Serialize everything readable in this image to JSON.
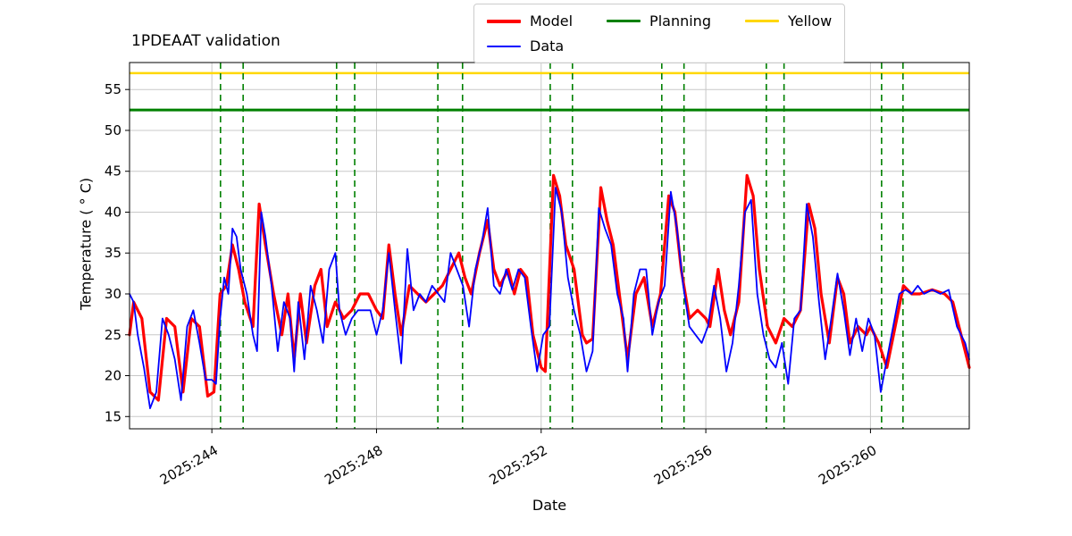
{
  "figure": {
    "title": "1PDEAAT validation",
    "xlabel": "Date",
    "ylabel": "Temperature ( ° C)"
  },
  "legend": {
    "items": [
      {
        "label": "Model",
        "color": "#ff0000",
        "lw": 4
      },
      {
        "label": "Planning",
        "color": "#008000",
        "lw": 3
      },
      {
        "label": "Yellow",
        "color": "#ffd700",
        "lw": 3
      },
      {
        "label": "Data",
        "color": "#0000ff",
        "lw": 2
      }
    ]
  },
  "chart_data": {
    "type": "line",
    "title": "1PDEAAT validation",
    "xlabel": "Date",
    "ylabel": "Temperature ( ° C)",
    "xlim": [
      242.0,
      262.4
    ],
    "ylim": [
      13.5,
      58.3
    ],
    "grid": true,
    "grid_color": "#c8c8c8",
    "x_ticks": [
      244,
      248,
      252,
      256,
      260
    ],
    "x_tick_labels": [
      "2025:244",
      "2025:248",
      "2025:252",
      "2025:256",
      "2025:260"
    ],
    "y_ticks": [
      15,
      20,
      25,
      30,
      35,
      40,
      45,
      50,
      55
    ],
    "hlines": [
      {
        "name": "Yellow",
        "y": 57.0,
        "color": "#ffd700",
        "lw": 2.5
      },
      {
        "name": "Planning",
        "y": 52.5,
        "color": "#008000",
        "lw": 3
      }
    ],
    "vlines": {
      "color": "#008000",
      "style": "dashed",
      "x": [
        244.21,
        244.76,
        247.03,
        247.47,
        249.49,
        250.09,
        252.22,
        252.76,
        254.93,
        255.47,
        257.47,
        257.9,
        260.27,
        260.79
      ]
    },
    "series": [
      {
        "name": "Model",
        "color": "#ff0000",
        "lw": 3.2,
        "x": [
          242.0,
          242.1,
          242.3,
          242.5,
          242.7,
          242.9,
          243.1,
          243.3,
          243.5,
          243.7,
          243.9,
          244.05,
          244.2,
          244.35,
          244.5,
          244.65,
          244.8,
          245.0,
          245.15,
          245.3,
          245.5,
          245.7,
          245.85,
          246.0,
          246.15,
          246.3,
          246.5,
          246.65,
          246.8,
          247.0,
          247.2,
          247.4,
          247.6,
          247.8,
          248.0,
          248.15,
          248.3,
          248.45,
          248.6,
          248.8,
          249.0,
          249.2,
          249.4,
          249.6,
          249.8,
          250.0,
          250.15,
          250.3,
          250.5,
          250.7,
          250.85,
          251.0,
          251.2,
          251.35,
          251.5,
          251.65,
          251.8,
          252.0,
          252.1,
          252.3,
          252.45,
          252.6,
          252.8,
          253.0,
          253.1,
          253.25,
          253.45,
          253.6,
          253.75,
          253.9,
          254.0,
          254.1,
          254.3,
          254.5,
          254.7,
          254.9,
          255.1,
          255.25,
          255.4,
          255.6,
          255.8,
          256.0,
          256.1,
          256.3,
          256.45,
          256.6,
          256.8,
          257.0,
          257.15,
          257.3,
          257.5,
          257.7,
          257.9,
          258.1,
          258.3,
          258.5,
          258.65,
          258.8,
          259.0,
          259.2,
          259.35,
          259.5,
          259.7,
          259.9,
          260.0,
          260.2,
          260.4,
          260.6,
          260.8,
          261.0,
          261.2,
          261.5,
          261.8,
          262.0,
          262.2,
          262.4
        ],
        "y": [
          25,
          29,
          27,
          18,
          17,
          27,
          26,
          18,
          27,
          26,
          17.5,
          18,
          30,
          31,
          36,
          33,
          29,
          26,
          41,
          36,
          30,
          25,
          30,
          22,
          30,
          24,
          31,
          33,
          26,
          29,
          27,
          28,
          30,
          30,
          28,
          27,
          36,
          30,
          25,
          31,
          30,
          29,
          30,
          31,
          33,
          35,
          32,
          30,
          35,
          39,
          33,
          31,
          33,
          30,
          33,
          32,
          25,
          21,
          20.5,
          44.5,
          42,
          36,
          33,
          25,
          24,
          24.5,
          43,
          39,
          36,
          30,
          26,
          22,
          30,
          32,
          26,
          30,
          42,
          40,
          33,
          27,
          28,
          27,
          26,
          33,
          28,
          25,
          29,
          44.5,
          42,
          33,
          26,
          24,
          27,
          26,
          28,
          41,
          38,
          30,
          24,
          32,
          30,
          24,
          26,
          25,
          26,
          24,
          21,
          26,
          31,
          30,
          30,
          30.5,
          30,
          29,
          25,
          21
        ]
      },
      {
        "name": "Data",
        "color": "#0000ff",
        "lw": 1.8,
        "x": [
          242.0,
          242.1,
          242.2,
          242.35,
          242.5,
          242.65,
          242.8,
          242.95,
          243.1,
          243.25,
          243.4,
          243.55,
          243.7,
          243.85,
          244.0,
          244.1,
          244.2,
          244.3,
          244.4,
          244.5,
          244.6,
          244.7,
          244.85,
          245.0,
          245.1,
          245.2,
          245.3,
          245.45,
          245.6,
          245.75,
          245.9,
          246.0,
          246.1,
          246.25,
          246.4,
          246.55,
          246.7,
          246.85,
          247.0,
          247.1,
          247.25,
          247.4,
          247.55,
          247.7,
          247.85,
          248.0,
          248.15,
          248.3,
          248.45,
          248.6,
          248.75,
          248.9,
          249.05,
          249.2,
          249.35,
          249.5,
          249.65,
          249.8,
          249.95,
          250.1,
          250.25,
          250.4,
          250.55,
          250.7,
          250.85,
          251.0,
          251.15,
          251.3,
          251.45,
          251.6,
          251.75,
          251.9,
          252.05,
          252.2,
          252.35,
          252.5,
          252.65,
          252.8,
          252.95,
          253.1,
          253.25,
          253.4,
          253.55,
          253.7,
          253.85,
          254.0,
          254.1,
          254.25,
          254.4,
          254.55,
          254.7,
          254.85,
          255.0,
          255.15,
          255.3,
          255.45,
          255.6,
          255.75,
          255.9,
          256.05,
          256.2,
          256.35,
          256.5,
          256.65,
          256.8,
          256.95,
          257.1,
          257.25,
          257.4,
          257.55,
          257.7,
          257.85,
          258.0,
          258.15,
          258.3,
          258.45,
          258.6,
          258.75,
          258.9,
          259.05,
          259.2,
          259.35,
          259.5,
          259.65,
          259.8,
          259.95,
          260.1,
          260.25,
          260.4,
          260.55,
          260.7,
          260.85,
          261.0,
          261.15,
          261.3,
          261.5,
          261.7,
          261.9,
          262.1,
          262.3,
          262.4
        ],
        "y": [
          30,
          29,
          25,
          21,
          16,
          18,
          27,
          25,
          22,
          17,
          26,
          28,
          24,
          19.5,
          19.5,
          19,
          27,
          32,
          30,
          38,
          37,
          33,
          30,
          25,
          23,
          40,
          37,
          31,
          23,
          29,
          27,
          20.5,
          29,
          22,
          31,
          28,
          24,
          33,
          35,
          28,
          25,
          27,
          28,
          28,
          28,
          25,
          28,
          35,
          28,
          21.5,
          35.5,
          28,
          30,
          29,
          31,
          30,
          29,
          35,
          33,
          31,
          26,
          33,
          36,
          40.5,
          31,
          30,
          33,
          30.5,
          33,
          32,
          26,
          20.5,
          25,
          26,
          43,
          40,
          32,
          28,
          25,
          20.5,
          23,
          40.5,
          38,
          36,
          30,
          27,
          20.5,
          30,
          33,
          33,
          25,
          29,
          31,
          42.5,
          38,
          31,
          26,
          25,
          24,
          26,
          31,
          27,
          20.5,
          24,
          31,
          40,
          41.5,
          30,
          25,
          22,
          21,
          24,
          19,
          27,
          28,
          41,
          37,
          29,
          22,
          27,
          32.5,
          28,
          22.5,
          27,
          23,
          27,
          25,
          18,
          22,
          26,
          30,
          30.5,
          30,
          31,
          30,
          30.5,
          30,
          30.5,
          26,
          24,
          22
        ]
      }
    ]
  }
}
